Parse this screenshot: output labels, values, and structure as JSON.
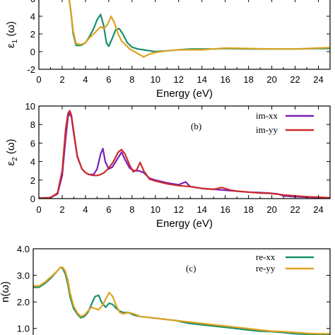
{
  "chart_data": [
    {
      "type": "line",
      "panel": "a",
      "panel_label": "",
      "ylabel": "ε1 (ω)",
      "xlabel": "Energy (eV)",
      "xlim": [
        0,
        25
      ],
      "ylim": [
        -2,
        6
      ],
      "xticks": [
        0,
        2,
        4,
        6,
        8,
        10,
        12,
        14,
        16,
        18,
        20,
        22,
        24
      ],
      "yticks": [
        -2,
        0,
        2,
        4,
        6
      ],
      "series": [
        {
          "name": "",
          "color": "#178f6b",
          "x": [
            2.6,
            2.75,
            2.95,
            3.2,
            3.6,
            4.0,
            4.3,
            4.7,
            5.0,
            5.3,
            5.55,
            5.8,
            6.0,
            6.3,
            6.6,
            6.9,
            7.2,
            7.6,
            8.0,
            8.5,
            9.0,
            9.5,
            10.0,
            11,
            12,
            13,
            14,
            15,
            16,
            18,
            20,
            22,
            24,
            25
          ],
          "y": [
            6.0,
            4.5,
            2.0,
            0.7,
            0.7,
            1.0,
            1.6,
            2.6,
            3.6,
            4.2,
            3.0,
            1.0,
            0.6,
            1.5,
            2.5,
            2.6,
            2.0,
            1.0,
            0.5,
            0.3,
            0.2,
            0.1,
            0.0,
            0.1,
            0.2,
            0.3,
            0.3,
            0.3,
            0.35,
            0.3,
            0.3,
            0.3,
            0.35,
            0.35
          ]
        },
        {
          "name": "",
          "color": "#e0a321",
          "x": [
            2.6,
            2.75,
            2.95,
            3.2,
            3.6,
            4.0,
            4.3,
            4.7,
            5.0,
            5.3,
            5.6,
            5.9,
            6.2,
            6.5,
            6.8,
            7.1,
            7.5,
            7.8,
            8.2,
            8.6,
            9.0,
            9.3,
            9.7,
            10.0,
            11,
            12,
            13,
            14,
            15,
            16,
            18,
            20,
            22,
            24,
            25
          ],
          "y": [
            6.0,
            4.6,
            2.3,
            0.9,
            0.8,
            1.0,
            1.5,
            2.0,
            2.4,
            2.8,
            2.6,
            3.1,
            4.0,
            3.2,
            2.0,
            1.2,
            0.7,
            0.3,
            0.0,
            -0.3,
            -0.6,
            -0.4,
            -0.2,
            -0.1,
            0.1,
            0.2,
            0.2,
            0.2,
            0.3,
            0.4,
            0.35,
            0.3,
            0.3,
            0.4,
            0.45
          ]
        }
      ]
    },
    {
      "type": "line",
      "panel": "b",
      "panel_label": "(b)",
      "ylabel": "ε2 (ω)",
      "xlabel": "Energy (eV)",
      "xlim": [
        0,
        25
      ],
      "ylim": [
        0,
        10
      ],
      "xticks": [
        0,
        2,
        4,
        6,
        8,
        10,
        12,
        14,
        16,
        18,
        20,
        22,
        24
      ],
      "yticks": [
        0,
        2,
        4,
        6,
        8,
        10
      ],
      "legend_position": "top-right",
      "series": [
        {
          "name": "im-xx",
          "color": "#7a1fb8",
          "x": [
            0,
            1.0,
            1.6,
            2.0,
            2.3,
            2.5,
            2.65,
            2.8,
            3.0,
            3.3,
            3.7,
            4.0,
            4.3,
            4.7,
            5.0,
            5.3,
            5.5,
            5.7,
            6.0,
            6.3,
            6.6,
            6.9,
            7.1,
            7.4,
            7.8,
            8.2,
            8.6,
            9.0,
            9.5,
            10,
            11,
            12,
            12.6,
            13,
            14,
            15,
            16,
            17,
            18,
            19,
            19.7,
            20.5,
            21,
            22,
            23,
            24,
            25
          ],
          "y": [
            0.05,
            0.1,
            0.5,
            2.5,
            6.5,
            8.8,
            9.2,
            8.8,
            7.0,
            4.5,
            3.2,
            2.8,
            2.6,
            2.6,
            3.2,
            4.8,
            5.4,
            4.0,
            3.2,
            3.4,
            4.0,
            4.6,
            5.0,
            4.2,
            3.3,
            3.0,
            3.0,
            2.8,
            2.2,
            2.0,
            1.7,
            1.5,
            1.8,
            1.3,
            1.1,
            1.0,
            0.9,
            0.8,
            0.7,
            0.65,
            0.6,
            0.5,
            0.3,
            0.2,
            0.15,
            0.1,
            0.1
          ]
        },
        {
          "name": "im-yy",
          "color": "#cc2b2b",
          "x": [
            0,
            1.0,
            1.6,
            2.0,
            2.3,
            2.5,
            2.65,
            2.8,
            3.0,
            3.3,
            3.7,
            4.0,
            4.3,
            4.7,
            5.0,
            5.3,
            5.6,
            6.0,
            6.4,
            6.8,
            7.1,
            7.4,
            7.8,
            8.1,
            8.4,
            8.7,
            9.0,
            9.5,
            10,
            11,
            12,
            13,
            14,
            15,
            15.7,
            16.5,
            17,
            18,
            19,
            20,
            21,
            22,
            23,
            24,
            25
          ],
          "y": [
            0.05,
            0.1,
            0.6,
            3.0,
            7.5,
            9.2,
            9.5,
            9.0,
            7.2,
            4.6,
            3.2,
            2.8,
            2.6,
            2.5,
            2.5,
            2.6,
            2.8,
            3.3,
            4.0,
            5.0,
            5.3,
            4.8,
            3.6,
            2.9,
            3.1,
            3.9,
            3.0,
            2.1,
            1.9,
            1.6,
            1.4,
            1.3,
            1.1,
            1.0,
            1.2,
            0.9,
            0.8,
            0.7,
            0.6,
            0.55,
            0.4,
            0.3,
            0.2,
            0.15,
            0.1
          ]
        }
      ]
    },
    {
      "type": "line",
      "panel": "c",
      "panel_label": "(c)",
      "ylabel": "n(ω)",
      "xlabel": "",
      "xlim": [
        0,
        25
      ],
      "ylim": [
        0.7,
        4.0
      ],
      "yticks": [
        1.0,
        2.0,
        3.0,
        4.0
      ],
      "ytick_labels": [
        "1.0",
        "2.0",
        "3.0",
        "4.0"
      ],
      "legend_position": "top-right",
      "series": [
        {
          "name": "re-xx",
          "color": "#178f6b",
          "x": [
            0,
            0.5,
            1.0,
            1.5,
            2.0,
            2.3,
            2.5,
            2.7,
            2.9,
            3.1,
            3.4,
            3.7,
            4.0,
            4.3,
            4.6,
            4.9,
            5.2,
            5.5,
            5.8,
            6.1,
            6.4,
            6.7,
            7.0,
            7.3,
            7.6,
            8.0,
            8.5,
            9,
            10,
            11,
            12,
            13,
            14,
            15,
            16,
            17,
            18,
            19,
            20,
            21,
            22,
            23,
            24,
            25
          ],
          "y": [
            2.55,
            2.55,
            2.7,
            2.9,
            3.15,
            3.3,
            3.25,
            3.05,
            2.7,
            2.2,
            1.75,
            1.55,
            1.4,
            1.45,
            1.6,
            1.9,
            2.2,
            2.25,
            1.95,
            1.8,
            1.95,
            1.9,
            1.75,
            1.65,
            1.6,
            1.6,
            1.5,
            1.45,
            1.4,
            1.35,
            1.3,
            1.2,
            1.15,
            1.1,
            1.05,
            1.0,
            0.95,
            0.9,
            0.88,
            0.85,
            0.8,
            0.78,
            0.76,
            0.75
          ]
        },
        {
          "name": "re-yy",
          "color": "#e0a321",
          "x": [
            0,
            0.5,
            1.0,
            1.5,
            2.0,
            2.3,
            2.5,
            2.7,
            2.9,
            3.1,
            3.4,
            3.7,
            4.0,
            4.3,
            4.6,
            4.9,
            5.2,
            5.5,
            5.8,
            6.1,
            6.4,
            6.7,
            7.0,
            7.3,
            7.6,
            8.0,
            8.5,
            9,
            10,
            11,
            12,
            13,
            14,
            15,
            16,
            17,
            18,
            19,
            20,
            21,
            22,
            23,
            24,
            25
          ],
          "y": [
            2.6,
            2.6,
            2.75,
            2.95,
            3.15,
            3.3,
            3.3,
            3.15,
            2.85,
            2.35,
            1.85,
            1.6,
            1.45,
            1.5,
            1.65,
            1.8,
            1.75,
            1.7,
            1.85,
            2.1,
            2.35,
            2.2,
            1.85,
            1.6,
            1.55,
            1.6,
            1.55,
            1.45,
            1.4,
            1.35,
            1.3,
            1.25,
            1.2,
            1.15,
            1.1,
            1.05,
            1.0,
            0.95,
            0.9,
            0.88,
            0.85,
            0.82,
            0.8,
            0.8
          ]
        }
      ]
    }
  ]
}
